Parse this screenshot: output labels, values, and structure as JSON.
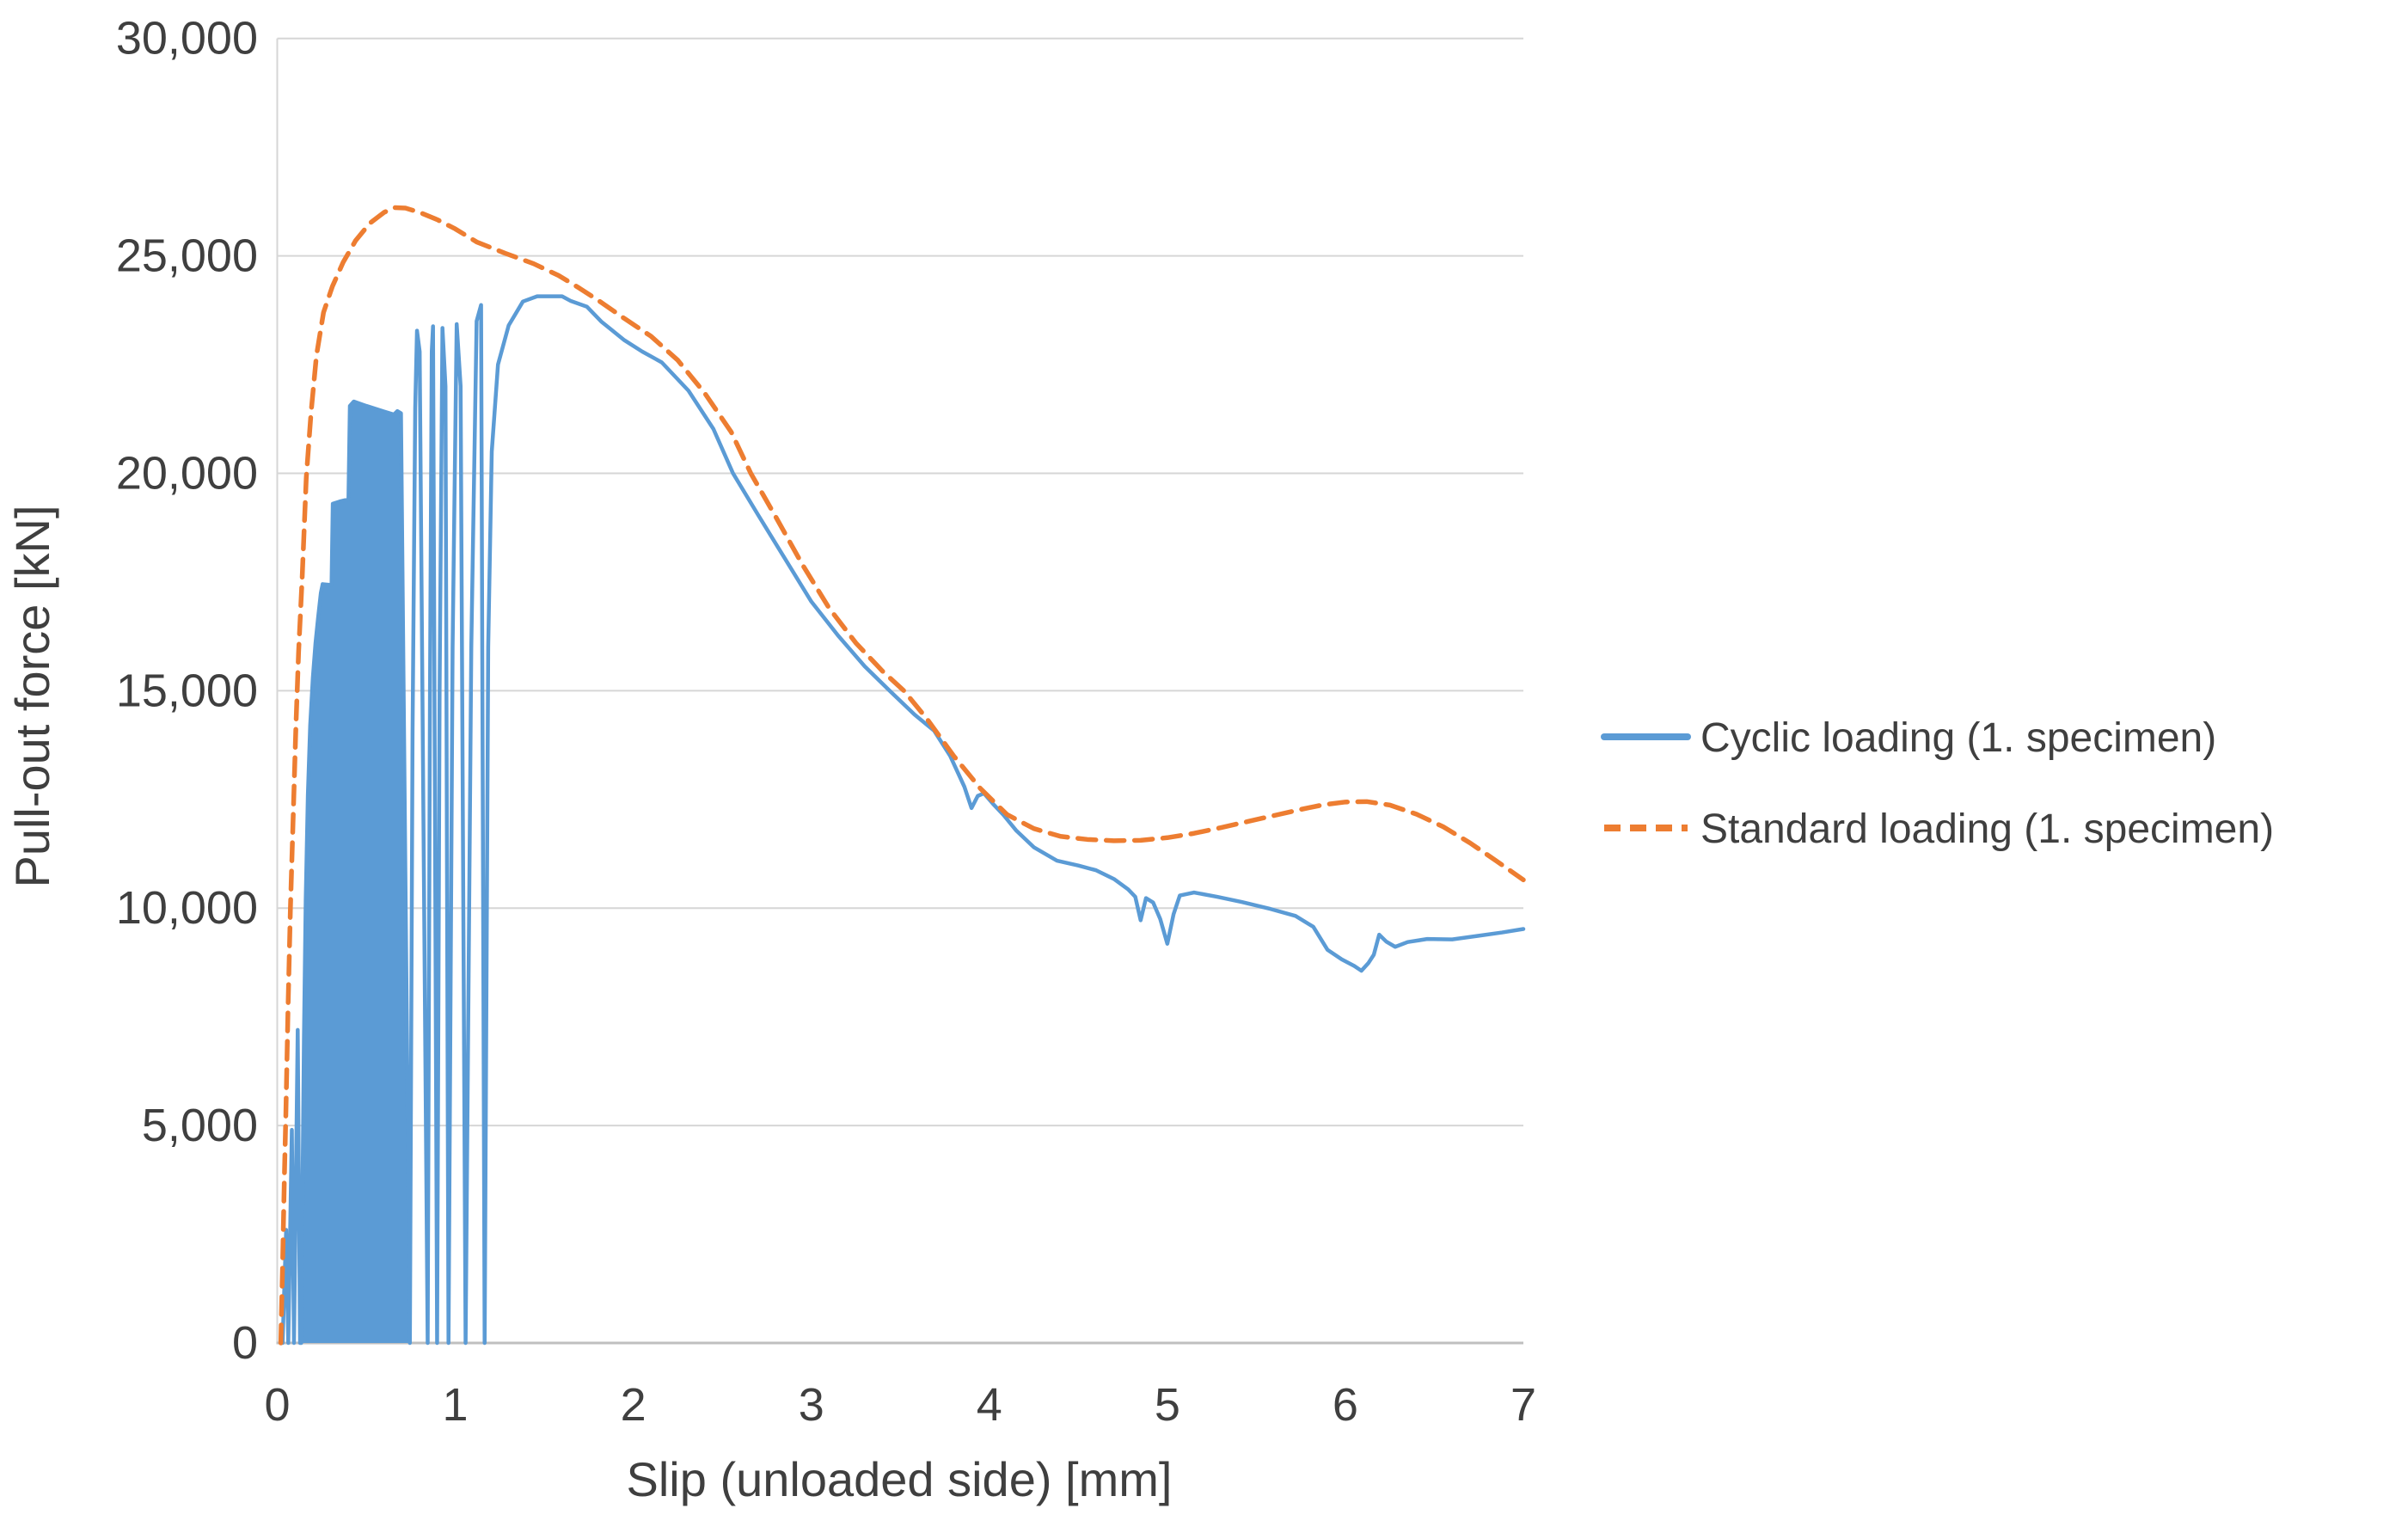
{
  "chart_data": {
    "type": "line",
    "title": "",
    "xlabel": "Slip (unloaded side) [mm]",
    "ylabel": "Pull-out force [kN]",
    "x_range": [
      0,
      7
    ],
    "y_range": [
      0,
      30000
    ],
    "x_ticks": [
      0,
      1,
      2,
      3,
      4,
      5,
      6,
      7
    ],
    "x_tick_labels": [
      "0",
      "1",
      "2",
      "3",
      "4",
      "5",
      "6",
      "7"
    ],
    "y_ticks": [
      0,
      5000,
      10000,
      15000,
      20000,
      25000,
      30000
    ],
    "y_tick_labels": [
      "0",
      "5,000",
      "10,000",
      "15,000",
      "20,000",
      "25,000",
      "30,000"
    ],
    "grid": "horizontal-only",
    "legend_position": "right",
    "colors": {
      "gridline": "#d6d6d6",
      "axis_line": "#bfbfbf",
      "text": "#3f3f3f",
      "background": "#ffffff"
    },
    "series": [
      {
        "name": "Cyclic loading (1. specimen)",
        "color": "#5B9BD5",
        "style": "solid",
        "stroke_width": 4.5,
        "fill_envelope": [
          [
            0.135,
            0
          ],
          [
            0.142,
            3500
          ],
          [
            0.15,
            7000
          ],
          [
            0.16,
            10200
          ],
          [
            0.172,
            12600
          ],
          [
            0.185,
            14200
          ],
          [
            0.2,
            15300
          ],
          [
            0.215,
            16100
          ],
          [
            0.23,
            16700
          ],
          [
            0.245,
            17250
          ],
          [
            0.255,
            17450
          ],
          [
            0.305,
            17430
          ],
          [
            0.312,
            19300
          ],
          [
            0.35,
            19350
          ],
          [
            0.4,
            19400
          ],
          [
            0.408,
            21550
          ],
          [
            0.43,
            21650
          ],
          [
            0.5,
            21550
          ],
          [
            0.6,
            21420
          ],
          [
            0.655,
            21350
          ],
          [
            0.675,
            21430
          ],
          [
            0.695,
            21380
          ],
          [
            0.745,
            0
          ]
        ],
        "points": [
          [
            0.03,
            0
          ],
          [
            0.05,
            2600
          ],
          [
            0.062,
            0
          ],
          [
            0.082,
            4900
          ],
          [
            0.094,
            0
          ],
          [
            0.115,
            7200
          ],
          [
            0.128,
            0
          ],
          [
            0.135,
            0
          ],
          [
            0.142,
            3500
          ],
          [
            0.15,
            7000
          ],
          [
            0.16,
            10200
          ],
          [
            0.172,
            12600
          ],
          [
            0.185,
            14200
          ],
          [
            0.2,
            15300
          ],
          [
            0.215,
            16100
          ],
          [
            0.23,
            16700
          ],
          [
            0.245,
            17250
          ],
          [
            0.255,
            17450
          ],
          [
            0.305,
            17430
          ],
          [
            0.312,
            19300
          ],
          [
            0.35,
            19350
          ],
          [
            0.4,
            19400
          ],
          [
            0.408,
            21550
          ],
          [
            0.43,
            21650
          ],
          [
            0.5,
            21550
          ],
          [
            0.6,
            21420
          ],
          [
            0.655,
            21350
          ],
          [
            0.675,
            21430
          ],
          [
            0.695,
            21380
          ],
          [
            0.745,
            0
          ],
          [
            0.76,
            14000
          ],
          [
            0.775,
            21500
          ],
          [
            0.785,
            23280
          ],
          [
            0.8,
            22800
          ],
          [
            0.845,
            0
          ],
          [
            0.858,
            15000
          ],
          [
            0.868,
            22800
          ],
          [
            0.875,
            23380
          ],
          [
            0.898,
            0
          ],
          [
            0.912,
            15000
          ],
          [
            0.928,
            23340
          ],
          [
            0.945,
            22000
          ],
          [
            0.962,
            0
          ],
          [
            0.985,
            16000
          ],
          [
            1.008,
            23430
          ],
          [
            1.03,
            22000
          ],
          [
            1.058,
            0
          ],
          [
            1.09,
            16000
          ],
          [
            1.12,
            23500
          ],
          [
            1.145,
            23870
          ],
          [
            1.165,
            0
          ],
          [
            1.185,
            16000
          ],
          [
            1.205,
            20500
          ],
          [
            1.24,
            22500
          ],
          [
            1.3,
            23400
          ],
          [
            1.38,
            23950
          ],
          [
            1.46,
            24070
          ],
          [
            1.6,
            24070
          ],
          [
            1.65,
            23960
          ],
          [
            1.74,
            23830
          ],
          [
            1.82,
            23490
          ],
          [
            1.95,
            23060
          ],
          [
            2.05,
            22800
          ],
          [
            2.16,
            22550
          ],
          [
            2.31,
            21900
          ],
          [
            2.45,
            21020
          ],
          [
            2.56,
            20000
          ],
          [
            2.7,
            19050
          ],
          [
            2.85,
            18050
          ],
          [
            3.0,
            17050
          ],
          [
            3.15,
            16270
          ],
          [
            3.3,
            15560
          ],
          [
            3.44,
            15000
          ],
          [
            3.58,
            14450
          ],
          [
            3.69,
            14080
          ],
          [
            3.78,
            13500
          ],
          [
            3.86,
            12790
          ],
          [
            3.9,
            12300
          ],
          [
            3.935,
            12580
          ],
          [
            3.97,
            12640
          ],
          [
            4.02,
            12400
          ],
          [
            4.08,
            12140
          ],
          [
            4.15,
            11790
          ],
          [
            4.25,
            11400
          ],
          [
            4.38,
            11090
          ],
          [
            4.5,
            10980
          ],
          [
            4.6,
            10870
          ],
          [
            4.7,
            10670
          ],
          [
            4.78,
            10430
          ],
          [
            4.82,
            10260
          ],
          [
            4.85,
            9720
          ],
          [
            4.88,
            10230
          ],
          [
            4.92,
            10130
          ],
          [
            4.96,
            9750
          ],
          [
            5.0,
            9180
          ],
          [
            5.035,
            9860
          ],
          [
            5.07,
            10290
          ],
          [
            5.15,
            10360
          ],
          [
            5.28,
            10260
          ],
          [
            5.42,
            10140
          ],
          [
            5.58,
            9980
          ],
          [
            5.72,
            9820
          ],
          [
            5.82,
            9570
          ],
          [
            5.9,
            9040
          ],
          [
            5.98,
            8820
          ],
          [
            6.05,
            8670
          ],
          [
            6.09,
            8560
          ],
          [
            6.13,
            8740
          ],
          [
            6.16,
            8930
          ],
          [
            6.19,
            9390
          ],
          [
            6.23,
            9230
          ],
          [
            6.28,
            9110
          ],
          [
            6.35,
            9220
          ],
          [
            6.46,
            9290
          ],
          [
            6.6,
            9280
          ],
          [
            6.74,
            9360
          ],
          [
            6.88,
            9440
          ],
          [
            7.0,
            9520
          ]
        ]
      },
      {
        "name": "Standard loading (1. specimen)",
        "color": "#ED7D31",
        "style": "dashed",
        "stroke_width": 5.5,
        "points": [
          [
            0.02,
            0
          ],
          [
            0.03,
            1800
          ],
          [
            0.04,
            3800
          ],
          [
            0.048,
            5200
          ],
          [
            0.06,
            7600
          ],
          [
            0.074,
            10000
          ],
          [
            0.088,
            11900
          ],
          [
            0.105,
            14200
          ],
          [
            0.12,
            15900
          ],
          [
            0.14,
            17600
          ],
          [
            0.163,
            19900
          ],
          [
            0.19,
            21400
          ],
          [
            0.22,
            22700
          ],
          [
            0.26,
            23700
          ],
          [
            0.31,
            24300
          ],
          [
            0.37,
            24850
          ],
          [
            0.44,
            25350
          ],
          [
            0.52,
            25750
          ],
          [
            0.6,
            26000
          ],
          [
            0.66,
            26110
          ],
          [
            0.72,
            26100
          ],
          [
            0.8,
            26000
          ],
          [
            0.9,
            25830
          ],
          [
            1.0,
            25620
          ],
          [
            1.12,
            25320
          ],
          [
            1.28,
            25060
          ],
          [
            1.44,
            24820
          ],
          [
            1.58,
            24550
          ],
          [
            1.7,
            24250
          ],
          [
            1.82,
            23930
          ],
          [
            1.95,
            23560
          ],
          [
            2.1,
            23150
          ],
          [
            2.25,
            22600
          ],
          [
            2.4,
            21850
          ],
          [
            2.55,
            20950
          ],
          [
            2.66,
            20000
          ],
          [
            2.8,
            19000
          ],
          [
            2.95,
            17900
          ],
          [
            3.1,
            16900
          ],
          [
            3.25,
            16100
          ],
          [
            3.4,
            15450
          ],
          [
            3.52,
            15000
          ],
          [
            3.65,
            14350
          ],
          [
            3.8,
            13500
          ],
          [
            3.95,
            12750
          ],
          [
            4.1,
            12150
          ],
          [
            4.25,
            11830
          ],
          [
            4.4,
            11650
          ],
          [
            4.55,
            11580
          ],
          [
            4.7,
            11550
          ],
          [
            4.85,
            11560
          ],
          [
            5.0,
            11620
          ],
          [
            5.15,
            11720
          ],
          [
            5.3,
            11850
          ],
          [
            5.45,
            11990
          ],
          [
            5.6,
            12130
          ],
          [
            5.75,
            12270
          ],
          [
            5.88,
            12380
          ],
          [
            6.0,
            12440
          ],
          [
            6.12,
            12450
          ],
          [
            6.25,
            12370
          ],
          [
            6.4,
            12160
          ],
          [
            6.55,
            11870
          ],
          [
            6.7,
            11500
          ],
          [
            6.85,
            11080
          ],
          [
            7.0,
            10650
          ]
        ]
      }
    ]
  },
  "legend": {
    "items": [
      {
        "label": "Cyclic loading (1. specimen)",
        "color": "#5B9BD5",
        "style": "solid"
      },
      {
        "label": "Standard loading (1. specimen)",
        "color": "#ED7D31",
        "style": "dashed"
      }
    ]
  }
}
